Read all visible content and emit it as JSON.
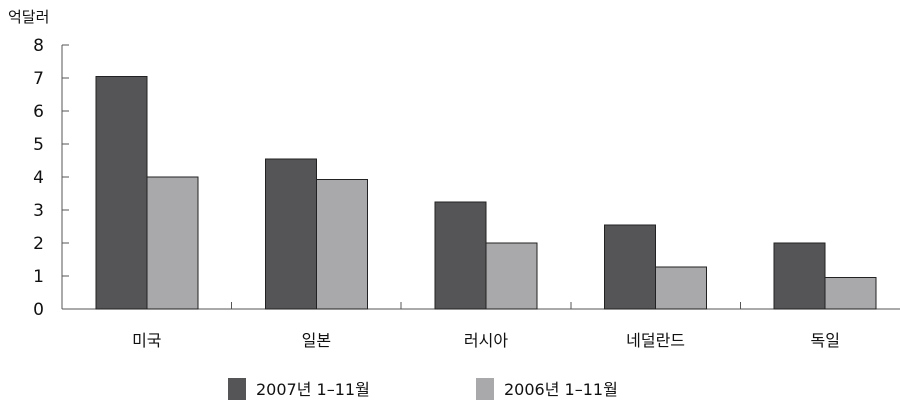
{
  "chart_data": {
    "type": "bar",
    "unit_label": "억달러",
    "categories": [
      "미국",
      "일본",
      "러시아",
      "네덜란드",
      "독일"
    ],
    "series": [
      {
        "name": "2007년 1–11월",
        "color": "#555558",
        "values": [
          7.05,
          4.55,
          3.25,
          2.55,
          2.0
        ]
      },
      {
        "name": "2006년 1–11월",
        "color": "#a9a9ab",
        "values": [
          4.0,
          3.93,
          2.0,
          1.28,
          0.95
        ]
      }
    ],
    "yticks": [
      0,
      1,
      2,
      3,
      4,
      5,
      6,
      7,
      8
    ],
    "ylim": [
      0,
      8
    ],
    "grid": false,
    "legend_position": "bottom"
  }
}
